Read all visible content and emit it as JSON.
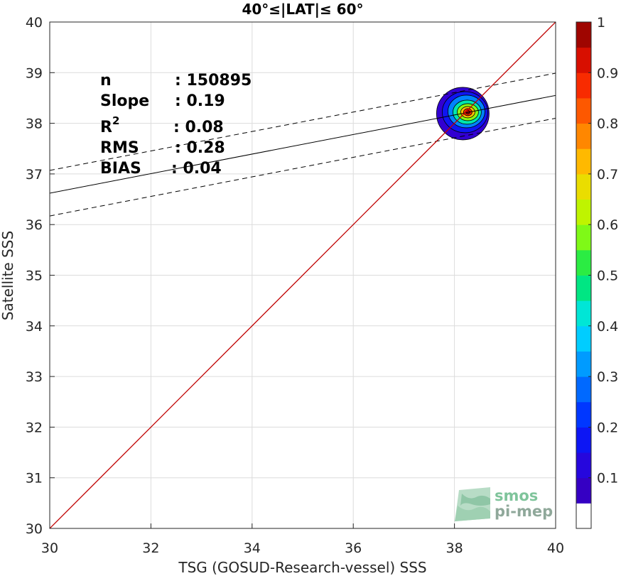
{
  "chart_data": {
    "type": "scatter",
    "title": "40°≤|LAT|≤ 60°",
    "xlabel": "TSG (GOSUD-Research-vessel) SSS",
    "ylabel": "Satellite SSS",
    "xlim": [
      30,
      40
    ],
    "ylim": [
      30,
      40
    ],
    "xticks": [
      "30",
      "32",
      "34",
      "36",
      "38",
      "40"
    ],
    "yticks": [
      "30",
      "31",
      "32",
      "33",
      "34",
      "35",
      "36",
      "37",
      "38",
      "39",
      "40"
    ],
    "grid": true,
    "stats": {
      "n": {
        "label": "n",
        "value": ": 150895"
      },
      "slope": {
        "label": "Slope",
        "value": ": 0.19"
      },
      "r2": {
        "label": "R",
        "sup": "2",
        "value": ": 0.08"
      },
      "rms": {
        "label": "RMS",
        "value": ": 0.28"
      },
      "bias": {
        "label": "BIAS",
        "value": ": 0.04"
      }
    },
    "identity_line": {
      "x": [
        30,
        40
      ],
      "y": [
        30,
        40
      ],
      "color": "#c00000"
    },
    "regression_line": {
      "x": [
        30,
        40
      ],
      "y": [
        36.62,
        38.55
      ],
      "color": "#000000"
    },
    "confidence_upper": {
      "x": [
        30,
        40
      ],
      "y": [
        37.07,
        38.99
      ]
    },
    "confidence_lower": {
      "x": [
        30,
        40
      ],
      "y": [
        36.17,
        38.1
      ]
    },
    "density_center": {
      "x": 38.25,
      "y": 38.22
    },
    "colorbar": {
      "min": 0,
      "max": 1,
      "ticks": [
        "0.1",
        "0.2",
        "0.3",
        "0.4",
        "0.5",
        "0.6",
        "0.7",
        "0.8",
        "0.9",
        "1"
      ],
      "tick_values": [
        0.1,
        0.2,
        0.3,
        0.4,
        0.5,
        0.6,
        0.7,
        0.8,
        0.9,
        1.0
      ]
    }
  },
  "logo": {
    "line1": "smos",
    "line2": "pi-mep"
  }
}
